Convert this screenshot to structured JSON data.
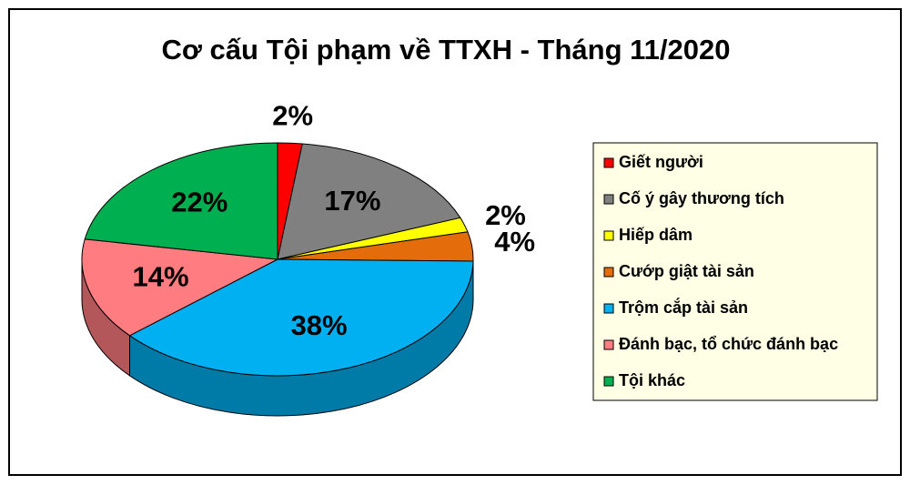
{
  "chart_data": {
    "type": "pie",
    "title": "Cơ cấu Tội phạm về TTXH - Tháng 11/2020",
    "categories": [
      "Giết người",
      "Cố ý gây thương tích",
      "Hiếp dâm",
      "Cướp giật tài sản",
      "Trộm cắp tài sản",
      "Đánh bạc, tổ chức đánh bạc",
      "Tội khác"
    ],
    "values": [
      2,
      17,
      2,
      4,
      38,
      14,
      22
    ],
    "value_labels": [
      "2%",
      "17%",
      "2%",
      "4%",
      "38%",
      "14%",
      "22%"
    ],
    "colors": [
      "#ff0000",
      "#808080",
      "#ffff00",
      "#e46c0a",
      "#00b0f0",
      "#ff7c80",
      "#00b050"
    ],
    "legend": "right"
  }
}
